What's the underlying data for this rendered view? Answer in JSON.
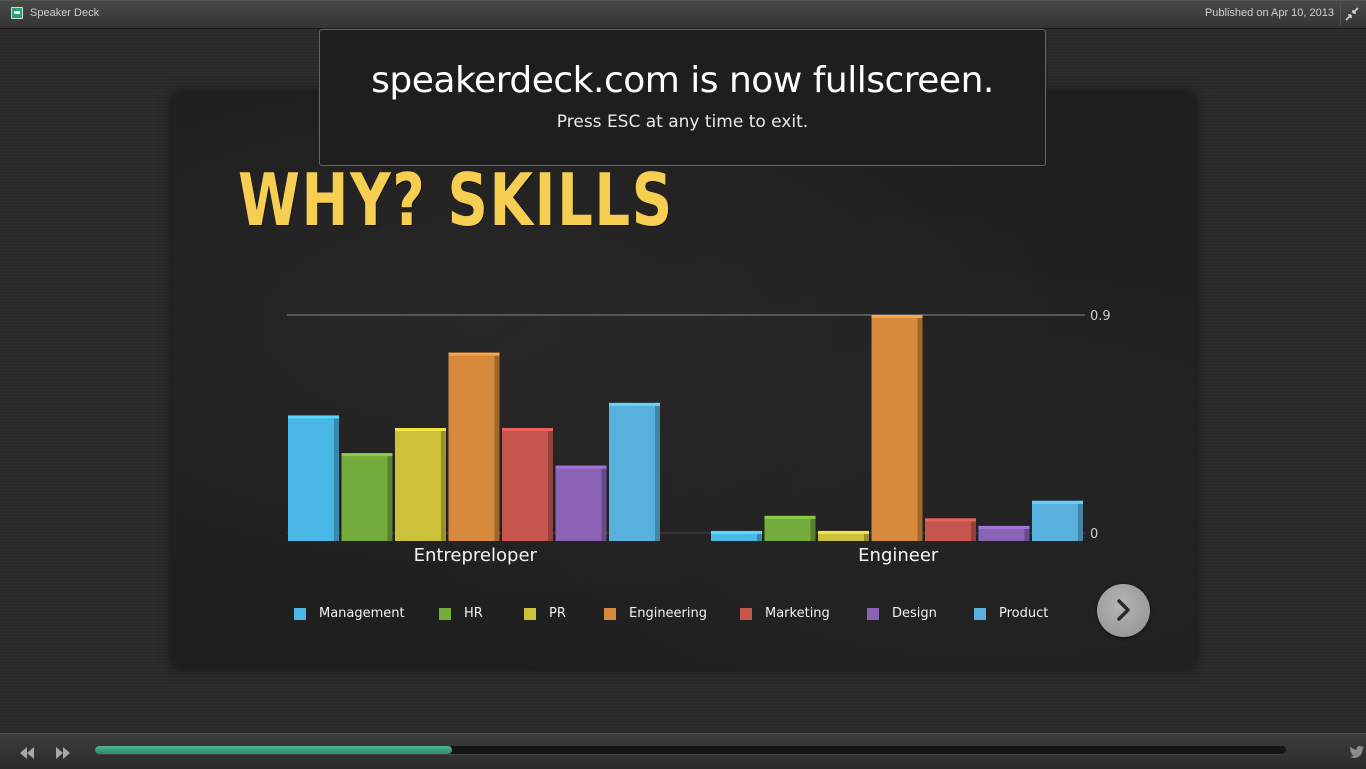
{
  "window": {
    "app_title": "Speaker Deck",
    "published": "Published on Apr 10, 2013",
    "collapse_icon": "collapse-fullscreen-icon"
  },
  "notice": {
    "title": "speakerdeck.com is now fullscreen.",
    "subtitle": "Press ESC at any time to exit."
  },
  "slide": {
    "title": "WHY? SKILLS",
    "title_color": "#f6cf52",
    "next_icon": "chevron-right-icon"
  },
  "chart_data": {
    "type": "bar",
    "categories": [
      "Entrepreloper",
      "Engineer"
    ],
    "series": [
      {
        "name": "Management",
        "color": "#4ab8e6",
        "values": [
          0.5,
          0.04
        ]
      },
      {
        "name": "HR",
        "color": "#74ac3c",
        "values": [
          0.35,
          0.1
        ]
      },
      {
        "name": "PR",
        "color": "#cbc13a",
        "values": [
          0.45,
          0.04
        ]
      },
      {
        "name": "Engineering",
        "color": "#d78a3c",
        "values": [
          0.75,
          0.9
        ]
      },
      {
        "name": "Marketing",
        "color": "#c6554f",
        "values": [
          0.45,
          0.09
        ]
      },
      {
        "name": "Design",
        "color": "#8a63b6",
        "values": [
          0.3,
          0.06
        ]
      },
      {
        "name": "Product",
        "color": "#58b1dd",
        "values": [
          0.55,
          0.16
        ]
      }
    ],
    "y_ticks": [
      "0.9",
      "0"
    ],
    "ylim": [
      0,
      0.9
    ],
    "legend_position": "bottom"
  },
  "bottom": {
    "progress": 0.3,
    "prev_icon": "rewind-icon",
    "next_icon": "fast-forward-icon",
    "share_label": "share",
    "share_icon": "twitter-bird-icon"
  }
}
